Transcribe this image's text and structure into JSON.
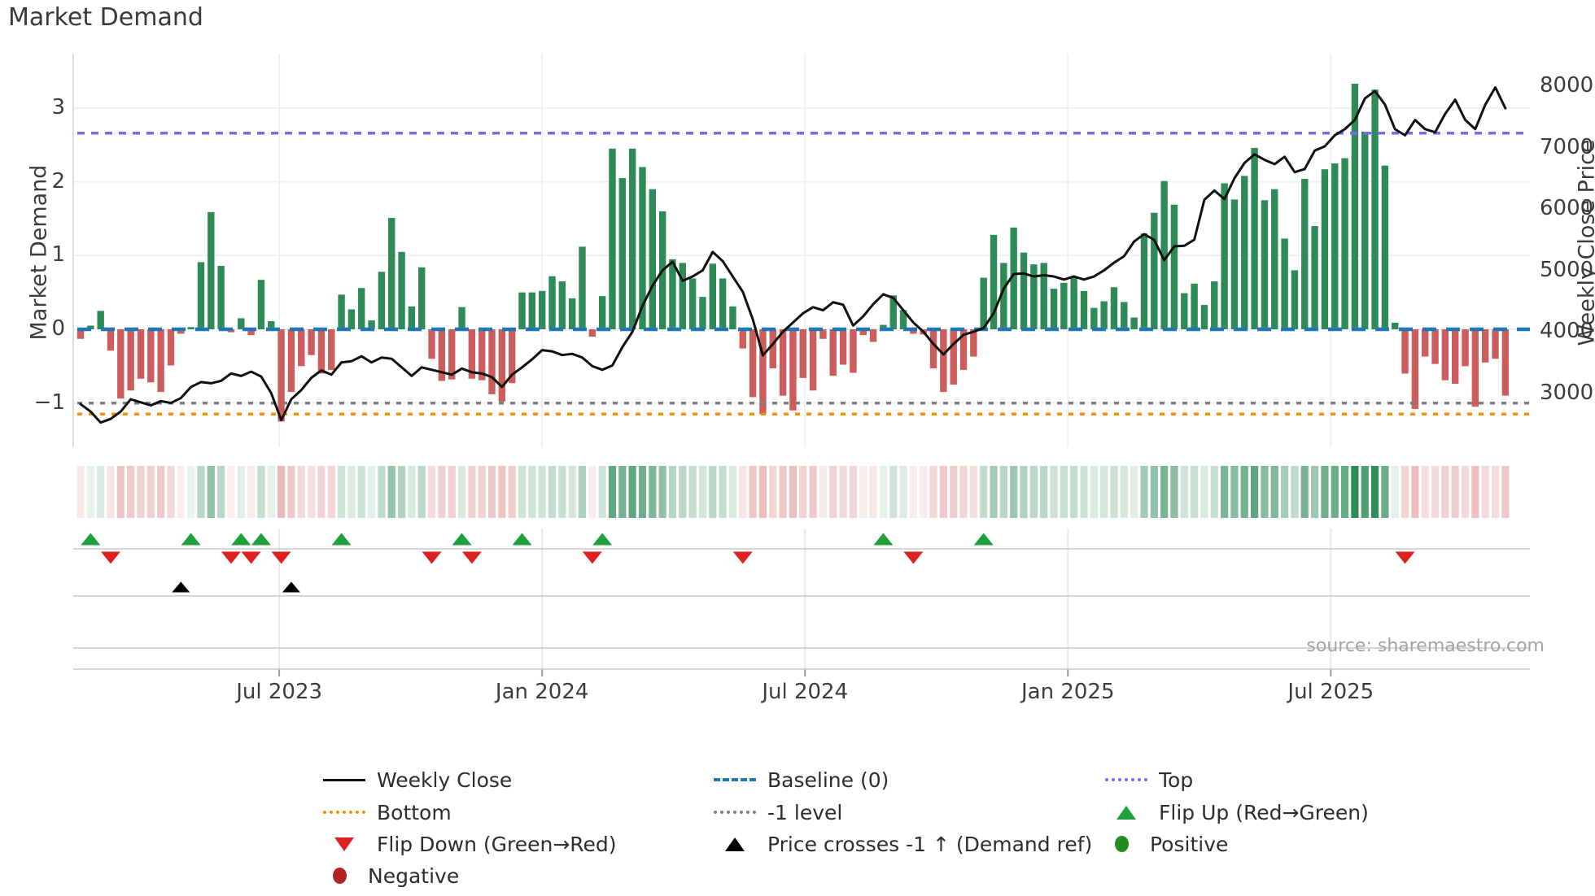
{
  "title": "Market Demand",
  "source": "source: sharemaestro.com",
  "left_axis": {
    "label": "Market Demand",
    "ticks": [
      "3",
      "2",
      "1",
      "0",
      "−1"
    ],
    "tick_values": [
      3,
      2,
      1,
      0,
      -1
    ]
  },
  "right_axis": {
    "label": "Weekly Close Price",
    "ticks": [
      "8000",
      "7000",
      "6000",
      "5000",
      "4000",
      "3000"
    ],
    "tick_values": [
      8000,
      7000,
      6000,
      5000,
      4000,
      3000
    ]
  },
  "x_axis": {
    "ticks": [
      "Jul 2023",
      "Jan 2024",
      "Jul 2024",
      "Jan 2025",
      "Jul 2025"
    ],
    "tick_week_positions": [
      19.8,
      46.0,
      72.2,
      98.4,
      124.6
    ]
  },
  "legend": {
    "columns": [
      [
        {
          "label": "Weekly Close",
          "type": "line-solid",
          "color": "#111111"
        },
        {
          "label": "Bottom",
          "type": "line-dotted",
          "color": "#ff8c00"
        },
        {
          "label": "Flip Down (Green→Red)",
          "type": "tri-down",
          "color": "#df2020"
        },
        {
          "label": "Negative",
          "type": "dot",
          "color": "#b22222"
        }
      ],
      [
        {
          "label": "Baseline (0)",
          "type": "line-dashed",
          "color": "#1f77b4"
        },
        {
          "label": "-1 level",
          "type": "line-dotted",
          "color": "#808080"
        },
        {
          "label": "Price crosses -1 ↑ (Demand ref)",
          "type": "tri-up",
          "color": "#000000"
        }
      ],
      [
        {
          "label": "Top",
          "type": "line-dotted",
          "color": "#7b68ee"
        },
        {
          "label": "Flip Up (Red→Green)",
          "type": "tri-up",
          "color": "#1ea03c"
        },
        {
          "label": "Positive",
          "type": "dot",
          "color": "#228b22"
        }
      ]
    ]
  },
  "colors": {
    "green_bar": "#2e8b57",
    "red_bar": "#cd5c5c",
    "price_line": "#111111",
    "baseline": "#1f77b4",
    "top": "#7b68ee",
    "bottom": "#ff8c00",
    "minus_one": "#808080",
    "flip_up": "#1ea03c",
    "flip_down": "#df2020",
    "price_cross": "#000000",
    "grid": "#eef0f4",
    "vgrid": "#e9e9ec",
    "spine": "#d9dce1",
    "panel_line": "#c9c9c9",
    "tick_mark": "#9a9a9a"
  },
  "chart_data": {
    "type": "bar+line",
    "title": "Market Demand",
    "ylabel_left": "Market Demand",
    "ylabel_right": "Weekly Close Price",
    "weeks": 143,
    "demand_ylim": [
      -1.6,
      3.74
    ],
    "price_ylim": [
      2150,
      8500
    ],
    "reference_lines": {
      "baseline": 0,
      "minus_one": -1,
      "top": 2.66,
      "bottom": -1.15
    },
    "demand": [
      -0.13,
      0.05,
      0.25,
      -0.29,
      -0.94,
      -0.83,
      -0.67,
      -0.72,
      -0.85,
      -0.49,
      -0.06,
      0.03,
      0.91,
      1.59,
      0.86,
      -0.04,
      0.15,
      -0.08,
      0.67,
      0.11,
      -1.25,
      -0.85,
      -0.5,
      -0.35,
      -0.6,
      -0.55,
      0.47,
      0.27,
      0.56,
      0.12,
      0.78,
      1.51,
      1.05,
      0.31,
      0.84,
      -0.4,
      -0.7,
      -0.68,
      0.3,
      -0.67,
      -0.69,
      -0.88,
      -0.98,
      -0.73,
      0.5,
      0.5,
      0.52,
      0.72,
      0.65,
      0.42,
      1.12,
      -0.1,
      0.45,
      2.45,
      2.05,
      2.45,
      2.2,
      1.9,
      1.6,
      0.95,
      0.9,
      0.69,
      0.44,
      0.89,
      0.69,
      0.31,
      -0.26,
      -0.92,
      -1.15,
      -0.53,
      -0.9,
      -1.1,
      -0.66,
      -0.83,
      -0.13,
      -0.63,
      -0.48,
      -0.59,
      -0.08,
      -0.17,
      0.06,
      0.46,
      0.26,
      -0.06,
      -0.07,
      -0.53,
      -0.85,
      -0.75,
      -0.55,
      -0.37,
      0.7,
      1.28,
      0.9,
      1.38,
      1.04,
      0.88,
      0.9,
      0.55,
      0.63,
      0.7,
      0.52,
      0.29,
      0.38,
      0.57,
      0.37,
      0.16,
      1.3,
      1.58,
      2.01,
      1.69,
      0.49,
      0.62,
      0.33,
      0.65,
      1.98,
      1.76,
      2.08,
      2.46,
      1.75,
      1.9,
      1.23,
      0.8,
      2.04,
      1.4,
      2.17,
      2.25,
      2.32,
      3.33,
      2.68,
      3.25,
      2.22,
      0.09,
      -0.6,
      -1.08,
      -0.37,
      -0.47,
      -0.69,
      -0.74,
      -0.5,
      -1.05,
      -0.45,
      -0.4,
      -0.9
    ],
    "price": [
      2820,
      2700,
      2520,
      2580,
      2700,
      2900,
      2850,
      2800,
      2870,
      2840,
      2920,
      3100,
      3180,
      3160,
      3200,
      3320,
      3280,
      3350,
      3270,
      3000,
      2560,
      2900,
      3050,
      3250,
      3370,
      3300,
      3500,
      3520,
      3600,
      3500,
      3580,
      3560,
      3420,
      3280,
      3420,
      3380,
      3340,
      3300,
      3400,
      3340,
      3320,
      3260,
      3100,
      3300,
      3420,
      3550,
      3700,
      3680,
      3620,
      3640,
      3580,
      3440,
      3380,
      3450,
      3750,
      4000,
      4420,
      4750,
      5000,
      5140,
      4830,
      4900,
      5000,
      5300,
      5150,
      4900,
      4650,
      4200,
      3615,
      3800,
      4000,
      4150,
      4300,
      4400,
      4350,
      4480,
      4440,
      4100,
      4250,
      4450,
      4610,
      4550,
      4350,
      4150,
      4000,
      3800,
      3630,
      3800,
      3950,
      4000,
      4060,
      4300,
      4700,
      4940,
      4950,
      4900,
      4920,
      4900,
      4850,
      4900,
      4850,
      4900,
      5000,
      5125,
      5230,
      5470,
      5590,
      5495,
      5165,
      5390,
      5400,
      5500,
      6150,
      6300,
      6160,
      6500,
      6750,
      6890,
      6800,
      6730,
      6850,
      6600,
      6650,
      6950,
      7020,
      7200,
      7300,
      7450,
      7800,
      7920,
      7700,
      7300,
      7200,
      7450,
      7300,
      7250,
      7550,
      7780,
      7450,
      7300,
      7700,
      7980,
      7640
    ],
    "flip_up_indices": [
      1,
      11,
      16,
      18,
      26,
      38,
      44,
      52,
      80,
      90
    ],
    "flip_down_indices": [
      3,
      15,
      17,
      20,
      35,
      39,
      51,
      66,
      83,
      132
    ],
    "price_cross_indices": [
      10,
      21
    ],
    "legend_position": "bottom",
    "grid": true
  }
}
